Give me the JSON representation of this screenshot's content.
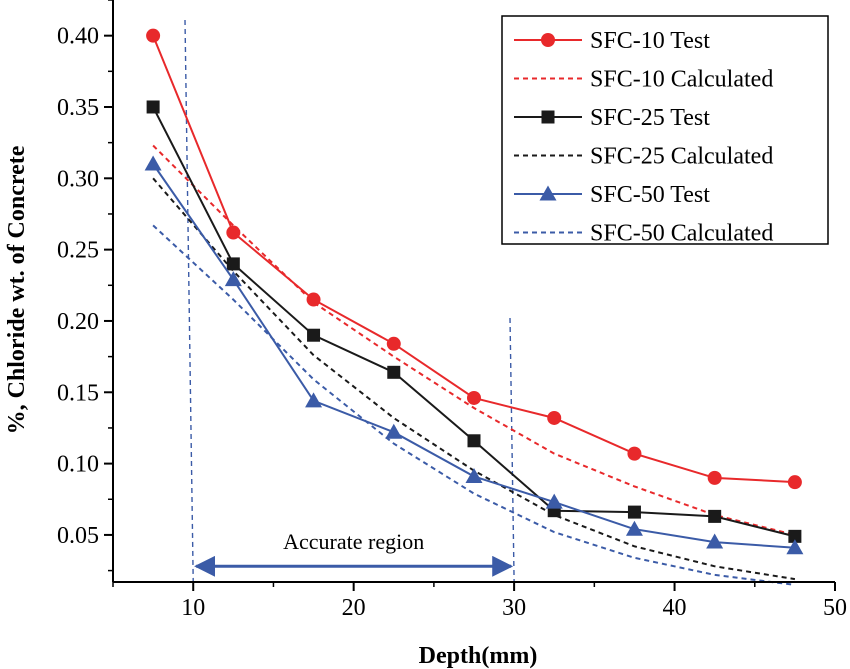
{
  "chart_data": {
    "type": "line",
    "title": "",
    "xlabel": "Depth(mm)",
    "ylabel": "%, Chloride wt. of Concrete",
    "xlim": [
      5,
      50
    ],
    "ylim": [
      0.017,
      0.425
    ],
    "xticks": [
      10,
      20,
      30,
      40,
      50
    ],
    "yticks": [
      0.05,
      0.1,
      0.15,
      0.2,
      0.25,
      0.3,
      0.35,
      0.4
    ],
    "xtick_labels": [
      "10",
      "20",
      "30",
      "40",
      "50"
    ],
    "ytick_labels": [
      "0.05",
      "0.10",
      "0.15",
      "0.20",
      "0.25",
      "0.30",
      "0.35",
      "0.40"
    ],
    "grid": false,
    "legend_position": "top-right",
    "series": [
      {
        "name": "SFC-10 Test",
        "color": "#e8292b",
        "style": "solid",
        "marker": "circle",
        "x": [
          7.5,
          12.5,
          17.5,
          22.5,
          27.5,
          32.5,
          37.5,
          42.5,
          47.5
        ],
        "y": [
          0.4,
          0.262,
          0.215,
          0.184,
          0.146,
          0.132,
          0.107,
          0.09,
          0.087
        ]
      },
      {
        "name": "SFC-10 Calculated",
        "color": "#e8292b",
        "style": "dashed",
        "marker": "none",
        "x": [
          7.5,
          12.5,
          17.5,
          22.5,
          27.5,
          32.5,
          37.5,
          42.5,
          47.5
        ],
        "y": [
          0.323,
          0.267,
          0.213,
          0.175,
          0.139,
          0.107,
          0.084,
          0.064,
          0.05
        ]
      },
      {
        "name": "SFC-25 Test",
        "color": "#1a1a1a",
        "style": "solid",
        "marker": "square",
        "x": [
          7.5,
          12.5,
          17.5,
          22.5,
          27.5,
          32.5,
          37.5,
          42.5,
          47.5
        ],
        "y": [
          0.35,
          0.24,
          0.19,
          0.164,
          0.116,
          0.067,
          0.066,
          0.063,
          0.049
        ]
      },
      {
        "name": "SFC-25 Calculated",
        "color": "#1a1a1a",
        "style": "dashed",
        "marker": "none",
        "x": [
          7.5,
          12.5,
          17.5,
          22.5,
          27.5,
          32.5,
          37.5,
          42.5,
          47.5
        ],
        "y": [
          0.3,
          0.235,
          0.176,
          0.132,
          0.095,
          0.064,
          0.042,
          0.028,
          0.019
        ]
      },
      {
        "name": "SFC-50 Test",
        "color": "#3b5ba7",
        "style": "solid",
        "marker": "triangle",
        "x": [
          7.5,
          12.5,
          17.5,
          22.5,
          27.5,
          32.5,
          37.5,
          42.5,
          47.5
        ],
        "y": [
          0.31,
          0.229,
          0.144,
          0.122,
          0.091,
          0.073,
          0.054,
          0.045,
          0.041
        ]
      },
      {
        "name": "SFC-50 Calculated",
        "color": "#3b5ba7",
        "style": "dashed",
        "marker": "none",
        "x": [
          7.5,
          12.5,
          17.5,
          22.5,
          27.5,
          32.5,
          37.5,
          42.5,
          47.5
        ],
        "y": [
          0.267,
          0.215,
          0.159,
          0.114,
          0.079,
          0.052,
          0.034,
          0.022,
          0.015
        ]
      }
    ],
    "annotations": {
      "region_label": "Accurate region",
      "region_bounds": [
        10,
        30
      ],
      "region_arrow_y": 0.028,
      "region_label_y": 0.045,
      "region_color": "#3b5ba7"
    }
  }
}
